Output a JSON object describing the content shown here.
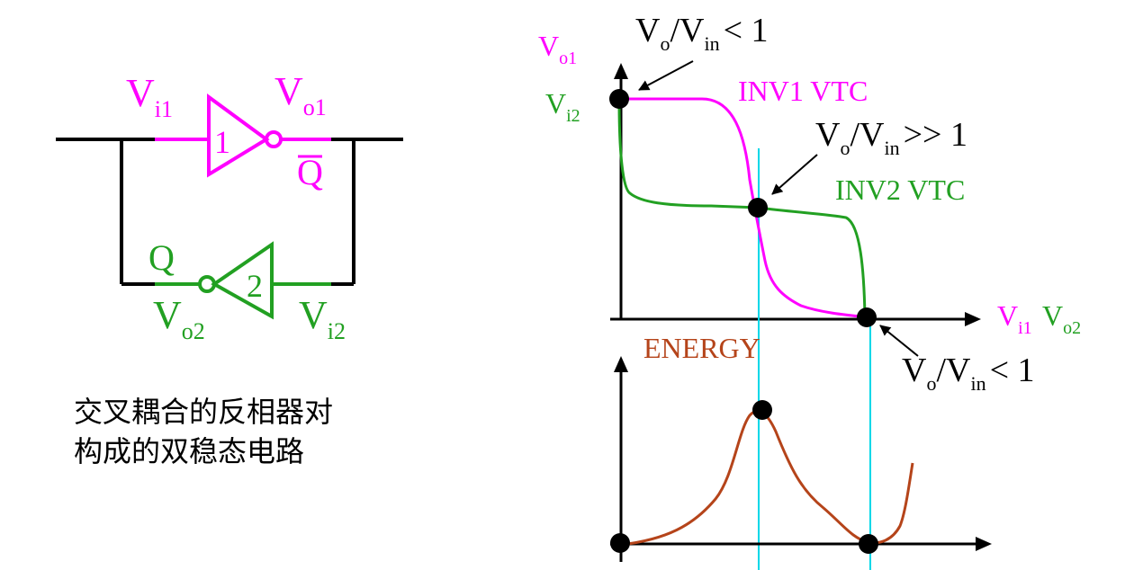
{
  "circuit": {
    "inv1": {
      "number": "1",
      "in_main": "V",
      "in_sub": "i1",
      "out_main": "V",
      "out_sub": "o1",
      "qbar": "Q"
    },
    "inv2": {
      "number": "2",
      "q": "Q",
      "out_main": "V",
      "out_sub": "o2",
      "in_main": "V",
      "in_sub": "i2"
    },
    "caption": [
      "交叉耦合的反相器对",
      "构成的双稳态电路"
    ]
  },
  "graphs": {
    "vtc": {
      "y_axis": {
        "line1_main": "V",
        "line1_sub": "o1",
        "line2_main": "V",
        "line2_sub": "i2"
      },
      "x_axis": {
        "part1_main": "V",
        "part1_sub": "i1",
        "part2_main": "V",
        "part2_sub": "o2"
      },
      "inv1_label": "INV1 VTC",
      "inv2_label": "INV2 VTC",
      "ann_top": {
        "v1": "V",
        "s1": "o",
        "slash": "/",
        "v2": "V",
        "s2": "in",
        "rest": "< 1"
      },
      "ann_mid": {
        "v1": "V",
        "s1": "o",
        "slash": "/",
        "v2": "V",
        "s2": "in",
        "rest": ">> 1"
      },
      "ann_bot": {
        "v1": "V",
        "s1": "o",
        "slash": "/",
        "v2": "V",
        "s2": "in",
        "rest": "< 1"
      }
    },
    "energy": {
      "label": "ENERGY"
    }
  },
  "colors": {
    "inv1": "#ff00ff",
    "inv2": "#22a022",
    "energy": "#b5441a",
    "guide": "#00d8e8",
    "wire": "#000000"
  }
}
